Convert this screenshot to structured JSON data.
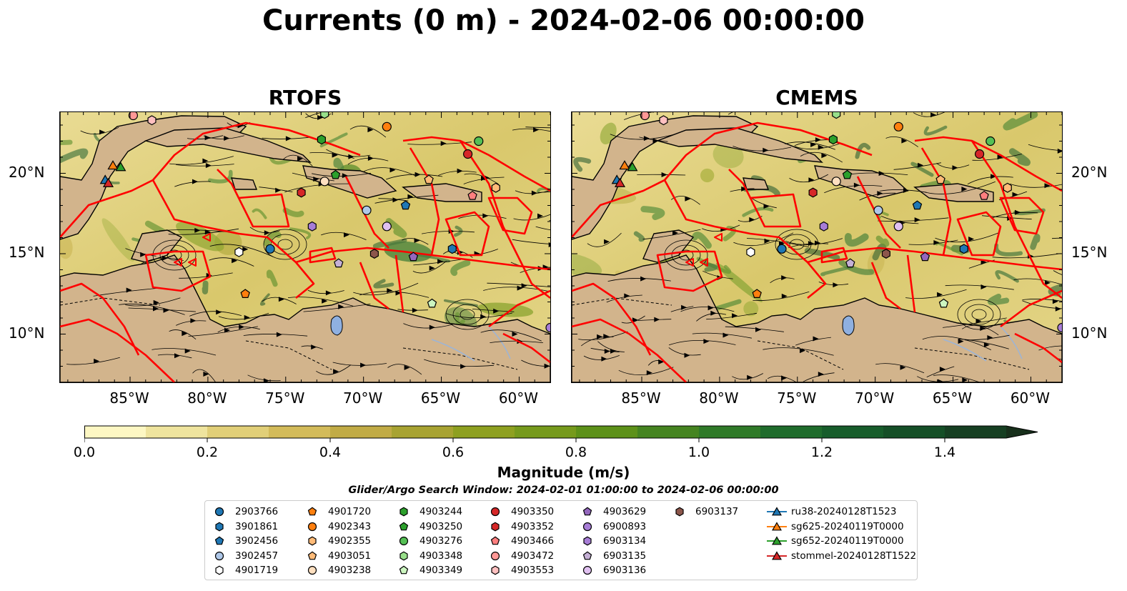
{
  "title": "Currents (0 m) - 2024-02-06 00:00:00",
  "panels": [
    {
      "title": "RTOFS"
    },
    {
      "title": "CMEMS"
    }
  ],
  "axes": {
    "lon_ticks": [
      "85°W",
      "80°W",
      "75°W",
      "70°W",
      "65°W",
      "60°W"
    ],
    "lat_ticks": [
      "20°N",
      "15°N",
      "10°N"
    ]
  },
  "colorbar": {
    "label": "Magnitude (m/s)",
    "ticks": [
      "0.0",
      "0.2",
      "0.4",
      "0.6",
      "0.8",
      "1.0",
      "1.2",
      "1.4"
    ],
    "colors": [
      "#fdf7c3",
      "#efe49e",
      "#e1cf78",
      "#d3bb5a",
      "#c1ab45",
      "#a8a332",
      "#8ea020",
      "#769a1c",
      "#5d9119",
      "#458420",
      "#2f7a28",
      "#1f6c2c",
      "#175d2b",
      "#154f27",
      "#163f22",
      "#172f1b"
    ]
  },
  "search_window": "Glider/Argo Search Window: 2024-02-01 01:00:00 to 2024-02-06 00:00:00",
  "legend": [
    {
      "label": "2903766",
      "marker": "circle",
      "color": "#1f77b4"
    },
    {
      "label": "3901861",
      "marker": "hexagon",
      "color": "#1f77b4"
    },
    {
      "label": "3902456",
      "marker": "pentagon",
      "color": "#1f77b4"
    },
    {
      "label": "3902457",
      "marker": "circle",
      "color": "#aec7e8"
    },
    {
      "label": "4901719",
      "marker": "hexagon",
      "color": "#ffffff"
    },
    {
      "label": "4901720",
      "marker": "pentagon",
      "color": "#ff7f0e"
    },
    {
      "label": "4902343",
      "marker": "circle",
      "color": "#ff7f0e"
    },
    {
      "label": "4902355",
      "marker": "hexagon",
      "color": "#ffbb78"
    },
    {
      "label": "4903051",
      "marker": "pentagon",
      "color": "#ffbb78"
    },
    {
      "label": "4903238",
      "marker": "circle",
      "color": "#ffe0c0"
    },
    {
      "label": "4903244",
      "marker": "hexagon",
      "color": "#2ca02c"
    },
    {
      "label": "4903250",
      "marker": "pentagon",
      "color": "#2ca02c"
    },
    {
      "label": "4903276",
      "marker": "circle",
      "color": "#55c055"
    },
    {
      "label": "4903348",
      "marker": "hexagon",
      "color": "#98df8a"
    },
    {
      "label": "4903349",
      "marker": "pentagon",
      "color": "#ccf5c0"
    },
    {
      "label": "4903350",
      "marker": "circle",
      "color": "#d62728"
    },
    {
      "label": "4903352",
      "marker": "hexagon",
      "color": "#d62728"
    },
    {
      "label": "4903466",
      "marker": "pentagon",
      "color": "#ff7f7f"
    },
    {
      "label": "4903472",
      "marker": "circle",
      "color": "#ff9896"
    },
    {
      "label": "4903553",
      "marker": "hexagon",
      "color": "#ffc0c0"
    },
    {
      "label": "4903629",
      "marker": "pentagon",
      "color": "#9467bd"
    },
    {
      "label": "6900893",
      "marker": "circle",
      "color": "#a77dd6"
    },
    {
      "label": "6903134",
      "marker": "hexagon",
      "color": "#a77dd6"
    },
    {
      "label": "6903135",
      "marker": "pentagon",
      "color": "#c5b0d5"
    },
    {
      "label": "6903136",
      "marker": "circle",
      "color": "#e0c0f0"
    },
    {
      "label": "6903137",
      "marker": "hexagon",
      "color": "#8c564b"
    },
    {
      "label": "ru38-20240128T1523",
      "marker": "triangle-line",
      "color": "#1f77b4"
    },
    {
      "label": "sg625-20240119T0000",
      "marker": "triangle-line",
      "color": "#ff7f0e"
    },
    {
      "label": "sg652-20240119T0000",
      "marker": "triangle-line",
      "color": "#2ca02c"
    },
    {
      "label": "stommel-20240128T1522",
      "marker": "triangle-line",
      "color": "#d62728"
    }
  ],
  "chart_data": [
    {
      "type": "heatmap",
      "title": "RTOFS",
      "xlabel": "",
      "ylabel": "",
      "xlim": [
        -89.5,
        -58.0
      ],
      "ylim": [
        7.0,
        23.8
      ],
      "xticks": [
        -85,
        -80,
        -75,
        -70,
        -65,
        -60
      ],
      "yticks": [
        20,
        15,
        10
      ],
      "grid": false,
      "colorbar": {
        "label": "Magnitude (m/s)",
        "range": [
          0.0,
          1.5
        ],
        "extend": "max"
      },
      "markers": [
        {
          "id": "2903766",
          "lon": -76.0,
          "lat": 15.3
        },
        {
          "id": "3901861",
          "lon": -64.3,
          "lat": 15.3
        },
        {
          "id": "3902456",
          "lon": -67.3,
          "lat": 18.0
        },
        {
          "id": "3902457",
          "lon": -69.8,
          "lat": 17.7
        },
        {
          "id": "4901719",
          "lon": -78.0,
          "lat": 15.1
        },
        {
          "id": "4901720",
          "lon": -77.6,
          "lat": 12.5
        },
        {
          "id": "4902343",
          "lon": -68.5,
          "lat": 22.9
        },
        {
          "id": "4902355",
          "lon": -61.5,
          "lat": 19.1
        },
        {
          "id": "4903051",
          "lon": -65.8,
          "lat": 19.6
        },
        {
          "id": "4903238",
          "lon": -72.5,
          "lat": 19.5
        },
        {
          "id": "4903244",
          "lon": -72.7,
          "lat": 22.1
        },
        {
          "id": "4903250",
          "lon": -71.8,
          "lat": 19.9
        },
        {
          "id": "4903276",
          "lon": -62.6,
          "lat": 22.0
        },
        {
          "id": "4903348",
          "lon": -72.5,
          "lat": 23.7
        },
        {
          "id": "4903349",
          "lon": -65.6,
          "lat": 11.9
        },
        {
          "id": "4903350",
          "lon": -63.3,
          "lat": 21.2
        },
        {
          "id": "4903352",
          "lon": -74.0,
          "lat": 18.8
        },
        {
          "id": "4903466",
          "lon": -63.0,
          "lat": 18.6
        },
        {
          "id": "4903472",
          "lon": -84.8,
          "lat": 23.6
        },
        {
          "id": "4903553",
          "lon": -83.6,
          "lat": 23.3
        },
        {
          "id": "4903629",
          "lon": -66.8,
          "lat": 14.8
        },
        {
          "id": "6900893",
          "lon": -58.0,
          "lat": 10.4
        },
        {
          "id": "6903134",
          "lon": -73.3,
          "lat": 16.7
        },
        {
          "id": "6903135",
          "lon": -71.6,
          "lat": 14.4
        },
        {
          "id": "6903136",
          "lon": -68.5,
          "lat": 16.7
        },
        {
          "id": "6903137",
          "lon": -69.3,
          "lat": 15.0
        },
        {
          "id": "ru38-20240128T1523",
          "lon": -86.6,
          "lat": 19.6
        },
        {
          "id": "sg625-20240119T0000",
          "lon": -86.1,
          "lat": 20.5
        },
        {
          "id": "sg652-20240119T0000",
          "lon": -85.6,
          "lat": 20.4
        },
        {
          "id": "stommel-20240128T1522",
          "lon": -86.4,
          "lat": 19.4
        }
      ]
    },
    {
      "type": "heatmap",
      "title": "CMEMS",
      "xlabel": "",
      "ylabel": "",
      "xlim": [
        -89.5,
        -58.0
      ],
      "ylim": [
        7.0,
        23.8
      ],
      "xticks": [
        -85,
        -80,
        -75,
        -70,
        -65,
        -60
      ],
      "yticks": [
        20,
        15,
        10
      ],
      "grid": false,
      "colorbar": {
        "label": "Magnitude (m/s)",
        "range": [
          0.0,
          1.5
        ],
        "extend": "max"
      },
      "markers": [
        {
          "id": "2903766",
          "lon": -76.0,
          "lat": 15.3
        },
        {
          "id": "3901861",
          "lon": -64.3,
          "lat": 15.3
        },
        {
          "id": "3902456",
          "lon": -67.3,
          "lat": 18.0
        },
        {
          "id": "3902457",
          "lon": -69.8,
          "lat": 17.7
        },
        {
          "id": "4901719",
          "lon": -78.0,
          "lat": 15.1
        },
        {
          "id": "4901720",
          "lon": -77.6,
          "lat": 12.5
        },
        {
          "id": "4902343",
          "lon": -68.5,
          "lat": 22.9
        },
        {
          "id": "4902355",
          "lon": -61.5,
          "lat": 19.1
        },
        {
          "id": "4903051",
          "lon": -65.8,
          "lat": 19.6
        },
        {
          "id": "4903238",
          "lon": -72.5,
          "lat": 19.5
        },
        {
          "id": "4903244",
          "lon": -72.7,
          "lat": 22.1
        },
        {
          "id": "4903250",
          "lon": -71.8,
          "lat": 19.9
        },
        {
          "id": "4903276",
          "lon": -62.6,
          "lat": 22.0
        },
        {
          "id": "4903348",
          "lon": -72.5,
          "lat": 23.7
        },
        {
          "id": "4903349",
          "lon": -65.6,
          "lat": 11.9
        },
        {
          "id": "4903350",
          "lon": -63.3,
          "lat": 21.2
        },
        {
          "id": "4903352",
          "lon": -74.0,
          "lat": 18.8
        },
        {
          "id": "4903466",
          "lon": -63.0,
          "lat": 18.6
        },
        {
          "id": "4903472",
          "lon": -84.8,
          "lat": 23.6
        },
        {
          "id": "4903553",
          "lon": -83.6,
          "lat": 23.3
        },
        {
          "id": "4903629",
          "lon": -66.8,
          "lat": 14.8
        },
        {
          "id": "6900893",
          "lon": -58.0,
          "lat": 10.4
        },
        {
          "id": "6903134",
          "lon": -73.3,
          "lat": 16.7
        },
        {
          "id": "6903135",
          "lon": -71.6,
          "lat": 14.4
        },
        {
          "id": "6903136",
          "lon": -68.5,
          "lat": 16.7
        },
        {
          "id": "6903137",
          "lon": -69.3,
          "lat": 15.0
        },
        {
          "id": "ru38-20240128T1523",
          "lon": -86.6,
          "lat": 19.6
        },
        {
          "id": "sg625-20240119T0000",
          "lon": -86.1,
          "lat": 20.5
        },
        {
          "id": "sg652-20240119T0000",
          "lon": -85.6,
          "lat": 20.4
        },
        {
          "id": "stommel-20240128T1522",
          "lon": -86.4,
          "lat": 19.4
        }
      ]
    }
  ]
}
